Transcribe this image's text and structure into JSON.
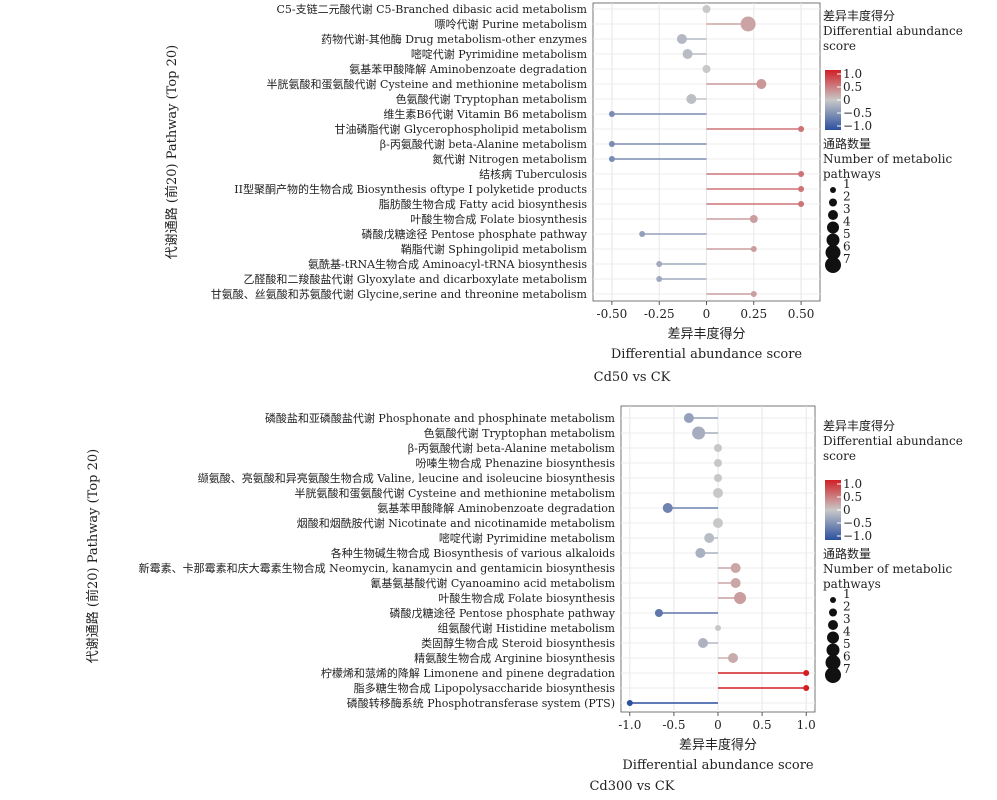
{
  "chart_data": [
    {
      "type": "lollipop",
      "caption": "Cd50 vs CK",
      "ylabel": "代谢通路 (前20) Pathway (Top 20)",
      "xlabel_cn": "差异丰度得分",
      "xlabel_en": "Differential abundance score",
      "xlim": [
        -0.6,
        0.6
      ],
      "xticks": [
        -0.5,
        -0.25,
        0,
        0.25,
        0.5
      ],
      "xtick_labels": [
        "-0.50",
        "-0.25",
        "0",
        "0.25",
        "0.50"
      ],
      "categories": [
        "C5-支链二元酸代谢 C5-Branched dibasic acid metabolism",
        "嘌呤代谢 Purine metabolism",
        "药物代谢-其他酶 Drug metabolism-other enzymes",
        "嘧啶代谢 Pyrimidine metabolism",
        "氨基苯甲酸降解 Aminobenzoate degradation",
        "半胱氨酸和蛋氨酸代谢 Cysteine and methionine metabolism",
        "色氨酸代谢 Tryptophan metabolism",
        "维生素B6代谢 Vitamin B6 metabolism",
        "甘油磷脂代谢 Glycerophospholipid metabolism",
        "β-丙氨酸代谢 beta-Alanine metabolism",
        "氮代谢 Nitrogen metabolism",
        "结核病 Tuberculosis",
        "II型聚酮产物的生物合成 Biosynthesis oftype I polyketide products",
        "脂肪酸生物合成 Fatty acid biosynthesis",
        "叶酸生物合成 Folate biosynthesis",
        "磷酸戊糖途径 Pentose phosphate pathway",
        "鞘脂代谢 Sphingolipid metabolism",
        "氨酰基-tRNA生物合成 Aminoacyl-tRNA biosynthesis",
        "乙醛酸和二羧酸盐代谢 Glyoxylate and dicarboxylate metabolism",
        "甘氨酸、丝氨酸和苏氨酸代谢 Glycine,serine and threonine metabolism"
      ],
      "values": [
        0,
        0.22,
        -0.13,
        -0.1,
        0,
        0.29,
        -0.08,
        -0.5,
        0.5,
        -0.5,
        -0.5,
        0.5,
        0.5,
        0.5,
        0.25,
        -0.34,
        0.25,
        -0.25,
        -0.25,
        0.25
      ],
      "counts": [
        2,
        6,
        3,
        3,
        2,
        3,
        3,
        1,
        1,
        1,
        1,
        1,
        1,
        1,
        2,
        1,
        1,
        1,
        1,
        1
      ],
      "color_scale": {
        "min": -1.0,
        "mid": 0,
        "max": 1.0,
        "low": "#2c4f9e",
        "midc": "#c8c8c8",
        "high": "#d11f24"
      },
      "color_legend_title_cn": "差异丰度得分",
      "color_legend_title_en": [
        "Differential abundance",
        "score"
      ],
      "color_ticks": [
        "1.0",
        "0.5",
        "0",
        "−0.5",
        "−1.0"
      ],
      "size_legend_title_cn": "通路数量",
      "size_legend_title_en": [
        "Number of metabolic",
        "pathways"
      ],
      "size_ticks": [
        "1",
        "2",
        "3",
        "4",
        "5",
        "6",
        "7"
      ]
    },
    {
      "type": "lollipop",
      "caption": "Cd300 vs CK",
      "ylabel": "代谢通路 (前20) Pathway (Top 20)",
      "xlabel_cn": "差异丰度得分",
      "xlabel_en": "Differential abundance score",
      "xlim": [
        -1.1,
        1.1
      ],
      "xticks": [
        -1.0,
        -0.5,
        0,
        0.5,
        1.0
      ],
      "xtick_labels": [
        "-1.0",
        "-0.5",
        "0",
        "0.5",
        "1.0"
      ],
      "categories": [
        "磷酸盐和亚磷酸盐代谢 Phosphonate and phosphinate metabolism",
        "色氨酸代谢 Tryptophan metabolism",
        "β-丙氨酸代谢 beta-Alanine metabolism",
        "吩嗪生物合成 Phenazine biosynthesis",
        "缬氨酸、亮氨酸和异亮氨酸生物合成 Valine, leucine and isoleucine biosynthesis",
        "半胱氨酸和蛋氨酸代谢 Cysteine and methionine metabolism",
        "氨基苯甲酸降解 Aminobenzoate degradation",
        "烟酸和烟酰胺代谢 Nicotinate and nicotinamide metabolism",
        "嘧啶代谢 Pyrimidine metabolism",
        "各种生物碱生物合成 Biosynthesis of various alkaloids",
        "新霉素、卡那霉素和庆大霉素生物合成 Neomycin, kanamycin and gentamicin biosynthesis",
        "氰基氨基酸代谢 Cyanoamino acid metabolism",
        "叶酸生物合成 Folate biosynthesis",
        "磷酸戊糖途径 Pentose phosphate pathway",
        "组氨酸代谢 Histidine metabolism",
        "类固醇生物合成 Steroid biosynthesis",
        "精氨酸生物合成 Arginine biosynthesis",
        "柠檬烯和蒎烯的降解 Limonene and pinene degradation",
        "脂多糖生物合成 Lipopolysaccharide biosynthesis",
        "磷酸转移酶系统 Phosphotransferase system (PTS)"
      ],
      "values": [
        -0.33,
        -0.22,
        0,
        0,
        0,
        0,
        -0.57,
        0,
        -0.1,
        -0.2,
        0.2,
        0.2,
        0.25,
        -0.67,
        0,
        -0.17,
        0.17,
        1.0,
        1.0,
        -1.0
      ],
      "counts": [
        3,
        5,
        2,
        2,
        2,
        3,
        3,
        3,
        3,
        3,
        3,
        3,
        4,
        2,
        1,
        3,
        3,
        1,
        1,
        1
      ],
      "color_scale": {
        "min": -1.0,
        "mid": 0,
        "max": 1.0,
        "low": "#2c4f9e",
        "midc": "#c8c8c8",
        "high": "#d11f24"
      },
      "color_legend_title_cn": "差异丰度得分",
      "color_legend_title_en": [
        "Differential abundance",
        "score"
      ],
      "color_ticks": [
        "1.0",
        "0.5",
        "0",
        "−0.5",
        "−1.0"
      ],
      "size_legend_title_cn": "通路数量",
      "size_legend_title_en": [
        "Number of metabolic",
        "pathways"
      ],
      "size_ticks": [
        "1",
        "2",
        "3",
        "4",
        "5",
        "6",
        "7"
      ]
    }
  ]
}
